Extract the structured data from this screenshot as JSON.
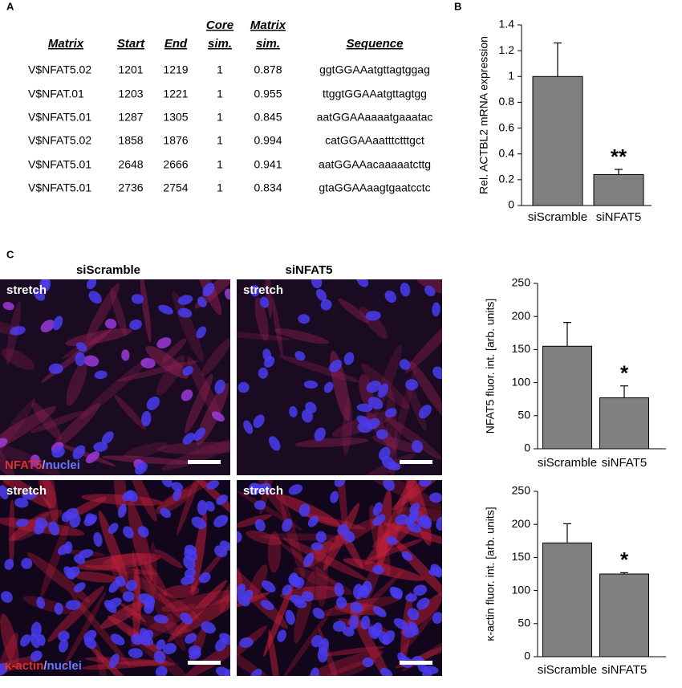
{
  "panel_labels": [
    "A",
    "B",
    "C"
  ],
  "table": {
    "header": [
      [
        "Matrix"
      ],
      [
        "Start"
      ],
      [
        "End"
      ],
      [
        "Core",
        "sim."
      ],
      [
        "Matrix",
        "sim."
      ],
      [
        "Sequence"
      ]
    ],
    "rows": [
      [
        "V$NFAT5.02",
        1201,
        1219,
        1,
        0.878,
        "ggtGGAAatgttagtggag"
      ],
      [
        "V$NFAT.01",
        1203,
        1221,
        1,
        0.955,
        "ttggtGGAAatgttagtgg"
      ],
      [
        "V$NFAT5.01",
        1287,
        1305,
        1,
        0.845,
        "aatGGAAaaaatgaaatac"
      ],
      [
        "V$NFAT5.02",
        1858,
        1876,
        1,
        0.994,
        "catGGAAaatttctttgct"
      ],
      [
        "V$NFAT5.01",
        2648,
        2666,
        1,
        0.941,
        "aatGGAAacaaaaatcttg"
      ],
      [
        "V$NFAT5.01",
        2736,
        2754,
        1,
        0.834,
        "gtaGGAAaagtgaatcctc"
      ]
    ]
  },
  "images": {
    "columns": [
      "siScramble",
      "siNFAT5"
    ],
    "rows": [
      {
        "tag": "stretch",
        "stain": "NFAT5",
        "separator": "/",
        "counterstain": "nuclei"
      },
      {
        "tag": "stretch",
        "stain": "κ-actin",
        "separator": "/",
        "counterstain": "nuclei"
      }
    ]
  },
  "chart_data": [
    {
      "type": "bar",
      "y_label": "Rel. ACTBL2 mRNA expression",
      "categories": [
        "siScramble",
        "siNFAT5"
      ],
      "values": [
        1.0,
        0.24
      ],
      "errors": [
        0.26,
        0.04
      ],
      "color": "#808080",
      "ylim": [
        0,
        1.4
      ],
      "yticks": [
        0,
        0.2,
        0.4,
        0.6,
        0.8,
        1,
        1.2,
        1.4
      ],
      "annotations": [
        {
          "category": 1,
          "text": "**"
        }
      ]
    },
    {
      "type": "bar",
      "y_label": "NFAT5 fluor. int. [arb. units]",
      "categories": [
        "siScramble",
        "siNFAT5"
      ],
      "values": [
        155,
        77
      ],
      "errors": [
        36,
        18
      ],
      "color": "#808080",
      "ylim": [
        0,
        250
      ],
      "yticks": [
        0,
        50,
        100,
        150,
        200,
        250
      ],
      "annotations": [
        {
          "category": 1,
          "text": "*"
        }
      ]
    },
    {
      "type": "bar",
      "y_label": "κ-actin fluor. int. [arb. units]",
      "categories": [
        "siScramble",
        "siNFAT5"
      ],
      "values": [
        172,
        125
      ],
      "errors": [
        29,
        2
      ],
      "color": "#808080",
      "ylim": [
        0,
        250
      ],
      "yticks": [
        0,
        50,
        100,
        150,
        200,
        250
      ],
      "annotations": [
        {
          "category": 1,
          "text": "*"
        }
      ]
    }
  ]
}
